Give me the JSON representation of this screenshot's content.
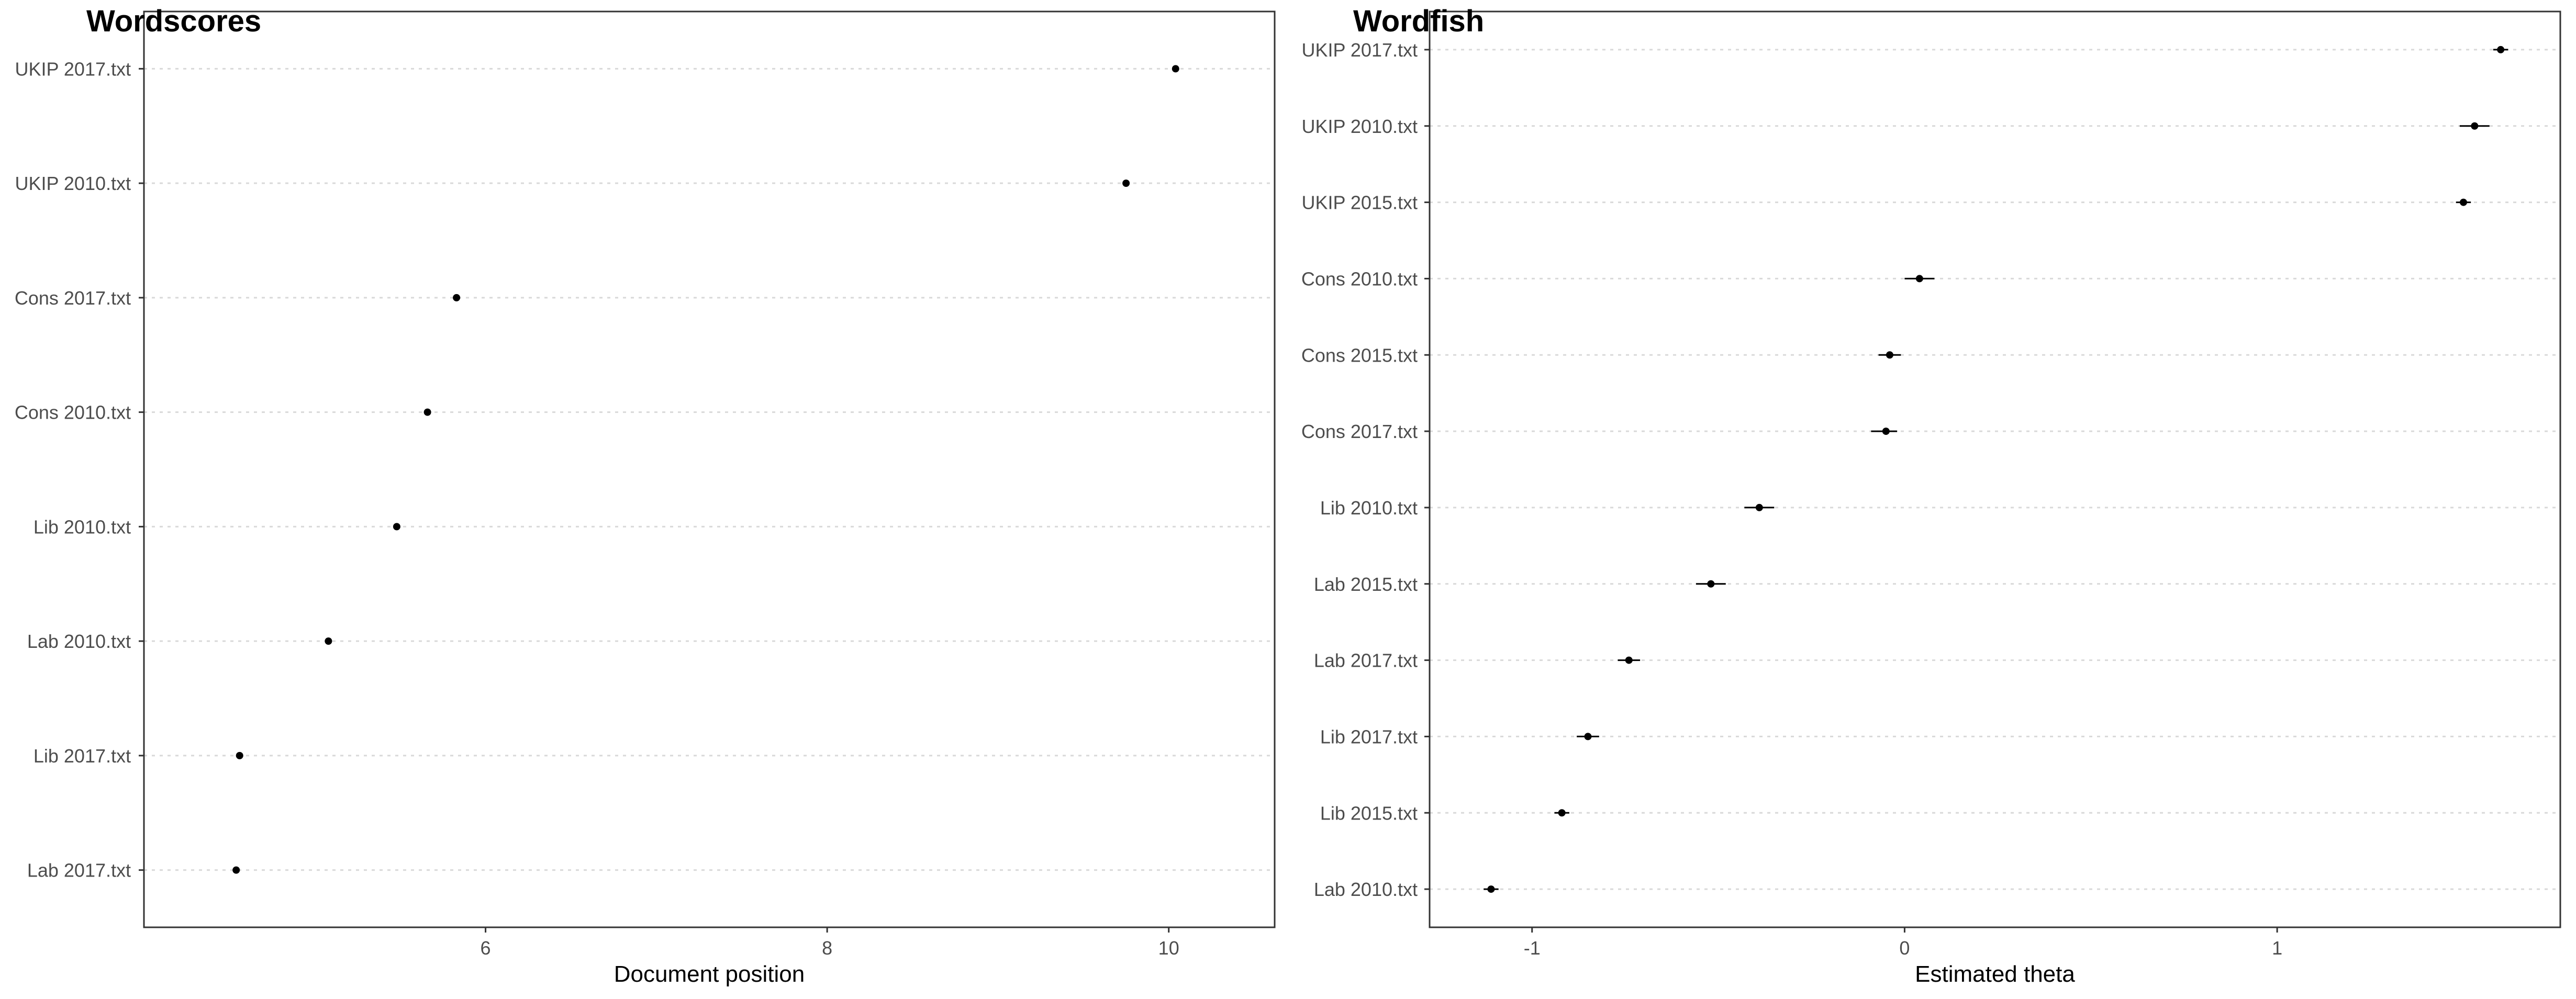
{
  "chart_data": [
    {
      "type": "scatter",
      "title": "Wordscores",
      "xlabel": "Document position",
      "ylabel": "",
      "xlim": [
        4.0,
        10.62
      ],
      "xticks": [
        "6",
        "8",
        "10"
      ],
      "grid": "horizontal dotted",
      "legend": "none",
      "categories": [
        "UKIP 2017.txt",
        "UKIP 2010.txt",
        "Cons 2017.txt",
        "Cons 2010.txt",
        "Lib 2010.txt",
        "Lab 2010.txt",
        "Lib 2017.txt",
        "Lab 2017.txt"
      ],
      "values": [
        10.04,
        9.75,
        5.83,
        5.66,
        5.48,
        5.08,
        4.56,
        4.54
      ]
    },
    {
      "type": "scatter",
      "title": "Wordfish",
      "xlabel": "Estimated theta",
      "ylabel": "",
      "xlim": [
        -1.275,
        1.76
      ],
      "xticks": [
        "-1",
        "0",
        "1"
      ],
      "grid": "horizontal dotted",
      "legend": "none",
      "error_bars": true,
      "categories": [
        "UKIP 2017.txt",
        "UKIP 2010.txt",
        "UKIP 2015.txt",
        "Cons 2010.txt",
        "Cons 2015.txt",
        "Cons 2017.txt",
        "Lib 2010.txt",
        "Lab 2015.txt",
        "Lab 2017.txt",
        "Lib 2017.txt",
        "Lib 2015.txt",
        "Lab 2010.txt"
      ],
      "values": [
        1.6,
        1.53,
        1.5,
        0.04,
        -0.04,
        -0.05,
        -0.39,
        -0.52,
        -0.74,
        -0.85,
        -0.92,
        -1.11
      ],
      "lower": [
        1.58,
        1.49,
        1.48,
        0.0,
        -0.07,
        -0.09,
        -0.43,
        -0.56,
        -0.77,
        -0.88,
        -0.94,
        -1.13
      ],
      "upper": [
        1.62,
        1.57,
        1.52,
        0.08,
        -0.01,
        -0.02,
        -0.35,
        -0.48,
        -0.71,
        -0.82,
        -0.9,
        -1.09
      ]
    }
  ],
  "colors": {
    "point": "#000000",
    "grid": "#d9d9d9",
    "frame": "#333333",
    "tick_text": "#4d4d4d",
    "background": "#ffffff"
  }
}
